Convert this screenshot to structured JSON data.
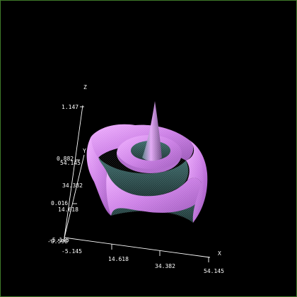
{
  "plot": {
    "axes": {
      "x": {
        "label": "X",
        "ticks": [
          "-5.145",
          "14.618",
          "34.382",
          "54.145"
        ]
      },
      "y": {
        "label": "Y",
        "ticks": [
          "-5.145",
          "14.618",
          "34.382",
          "54.145"
        ]
      },
      "z": {
        "label": "Z",
        "ticks": [
          "-0.598",
          "0.016",
          "0.882",
          "1.147"
        ]
      }
    },
    "colors": {
      "background": "#000000",
      "surface": "#d98af2",
      "surface_shadow": "#2f4f4f",
      "frame": "#3f7a2a"
    }
  }
}
